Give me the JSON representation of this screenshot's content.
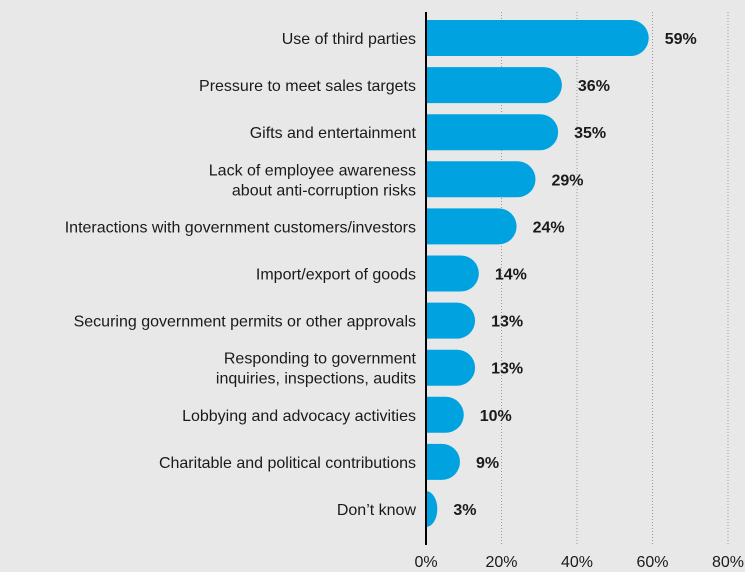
{
  "colors": {
    "background": "#e8e8e8",
    "bar": "#00a3e0",
    "axis": "#000000",
    "grid": "#9a9a9a",
    "text": "#1a1a1a"
  },
  "chart_data": {
    "type": "bar",
    "orientation": "horizontal",
    "categories": [
      [
        "Use of third parties"
      ],
      [
        "Pressure to meet sales targets"
      ],
      [
        "Gifts and entertainment"
      ],
      [
        "Lack of employee awareness",
        "about anti-corruption risks"
      ],
      [
        "Interactions with government customers/investors"
      ],
      [
        "Import/export of goods"
      ],
      [
        "Securing government permits or other approvals"
      ],
      [
        "Responding to government",
        "inquiries, inspections, audits"
      ],
      [
        "Lobbying and advocacy activities"
      ],
      [
        "Charitable and political contributions"
      ],
      [
        "Don’t know"
      ]
    ],
    "values": [
      59,
      36,
      35,
      29,
      24,
      14,
      13,
      13,
      10,
      9,
      3
    ],
    "value_labels": [
      "59%",
      "36%",
      "35%",
      "29%",
      "24%",
      "14%",
      "13%",
      "13%",
      "10%",
      "9%",
      "3%"
    ],
    "xlim": [
      0,
      80
    ],
    "xticks": [
      0,
      20,
      40,
      60,
      80
    ],
    "xtick_labels": [
      "0%",
      "20%",
      "40%",
      "60%",
      "80%"
    ],
    "grid": "vertical dotted",
    "title": "",
    "xlabel": "",
    "ylabel": ""
  }
}
